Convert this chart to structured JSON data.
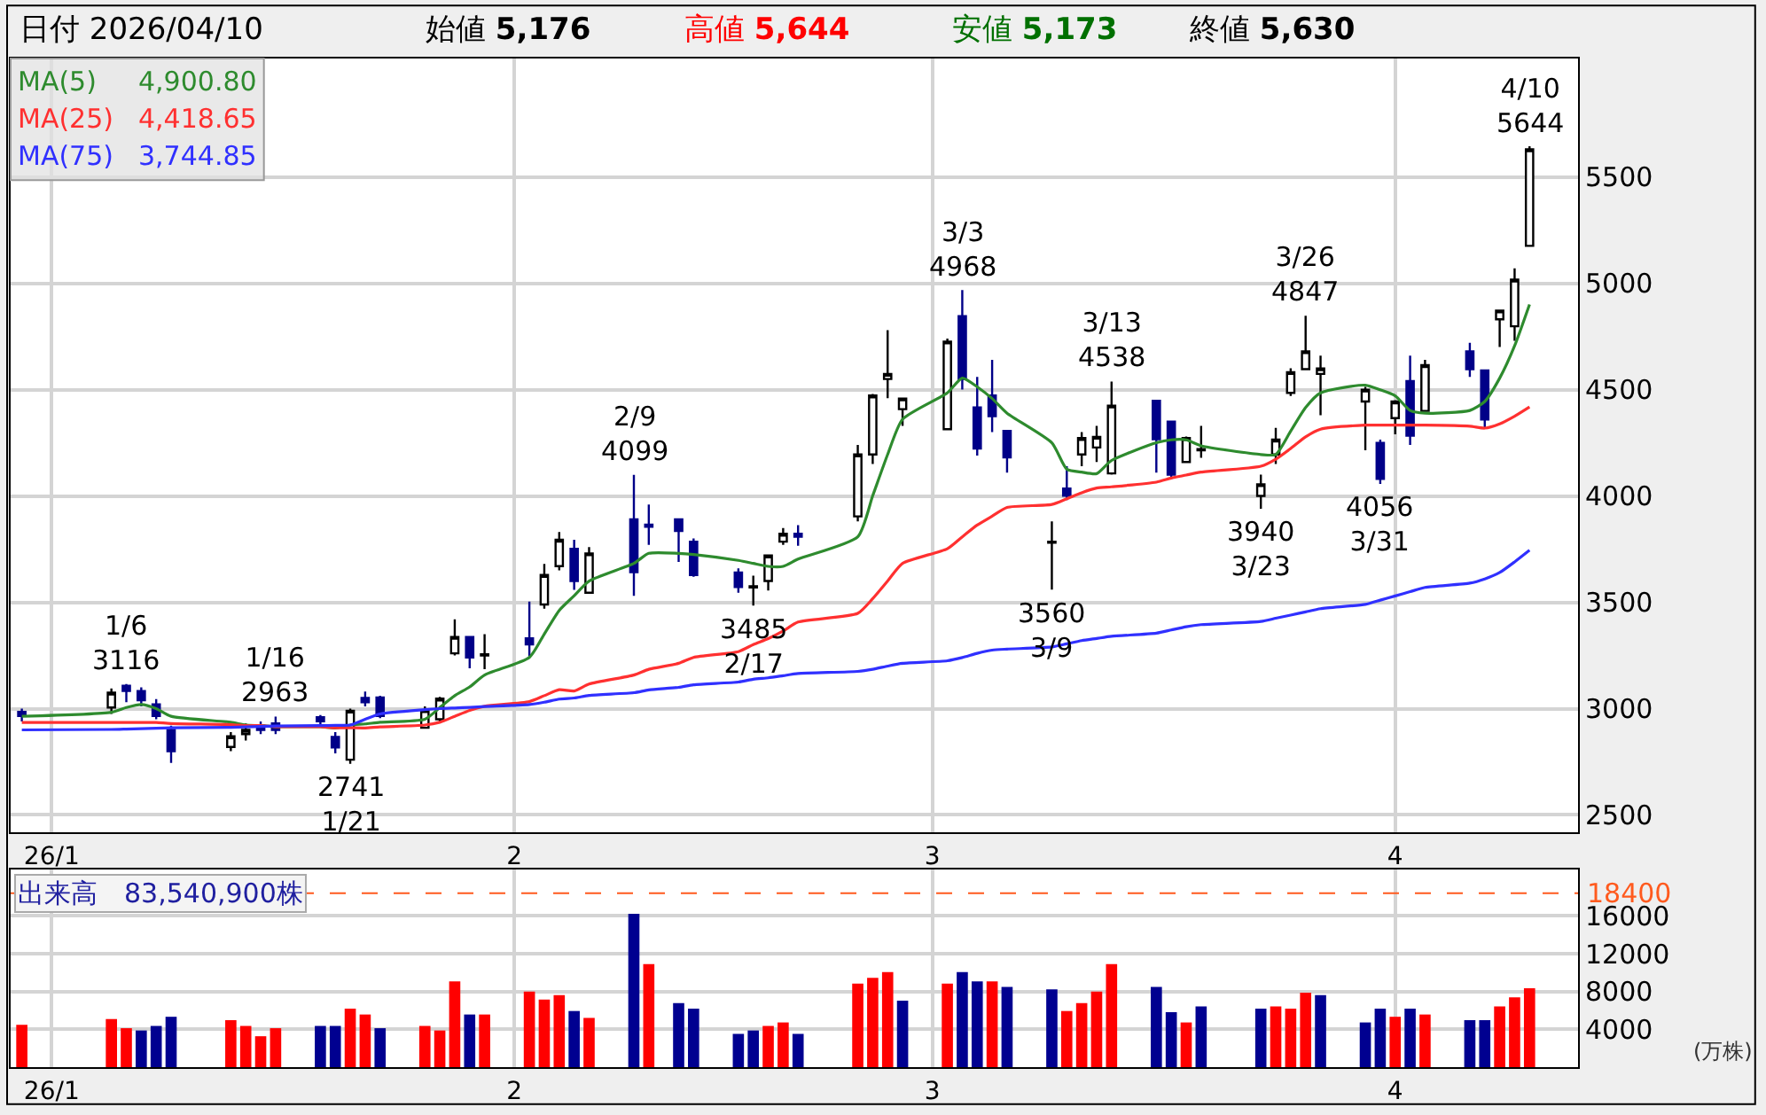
{
  "chart_data": [
    {
      "type": "candlestick",
      "title": "日付 2026/04/10",
      "annotations": [
        "始値 5,176",
        "高値 5,644",
        "安値 5,173",
        "終値 5,630",
        {
          "text": "1/6\n3116",
          "x": "2026-01-06",
          "y": 3116
        },
        {
          "text": "1/16\n2963",
          "x": "2026-01-16",
          "y": 2963
        },
        {
          "text": "2741\n1/21",
          "x": "2026-01-21",
          "y": 2741
        },
        {
          "text": "2/9\n4099",
          "x": "2026-02-09",
          "y": 4099
        },
        {
          "text": "3485\n2/17",
          "x": "2026-02-17",
          "y": 3485
        },
        {
          "text": "3/3\n4968",
          "x": "2026-03-03",
          "y": 4968
        },
        {
          "text": "3560\n3/9",
          "x": "2026-03-09",
          "y": 3560
        },
        {
          "text": "3/13\n4538",
          "x": "2026-03-13",
          "y": 4538
        },
        {
          "text": "3940\n3/23",
          "x": "2026-03-23",
          "y": 3940
        },
        {
          "text": "3/26\n4847",
          "x": "2026-03-26",
          "y": 4847
        },
        {
          "text": "4056\n3/31",
          "x": "2026-03-31",
          "y": 4056
        },
        {
          "text": "4/10\n5644",
          "x": "2026-04-10",
          "y": 5644
        }
      ],
      "x": [
        "2025-12-30",
        "2026-01-05",
        "2026-01-06",
        "2026-01-07",
        "2026-01-08",
        "2026-01-09",
        "2026-01-13",
        "2026-01-14",
        "2026-01-15",
        "2026-01-16",
        "2026-01-19",
        "2026-01-20",
        "2026-01-21",
        "2026-01-22",
        "2026-01-23",
        "2026-01-26",
        "2026-01-27",
        "2026-01-28",
        "2026-01-29",
        "2026-01-30",
        "2026-02-02",
        "2026-02-03",
        "2026-02-04",
        "2026-02-05",
        "2026-02-06",
        "2026-02-09",
        "2026-02-10",
        "2026-02-12",
        "2026-02-13",
        "2026-02-16",
        "2026-02-17",
        "2026-02-18",
        "2026-02-19",
        "2026-02-20",
        "2026-02-24",
        "2026-02-25",
        "2026-02-26",
        "2026-02-27",
        "2026-03-02",
        "2026-03-03",
        "2026-03-04",
        "2026-03-05",
        "2026-03-06",
        "2026-03-09",
        "2026-03-10",
        "2026-03-11",
        "2026-03-12",
        "2026-03-13",
        "2026-03-16",
        "2026-03-17",
        "2026-03-18",
        "2026-03-19",
        "2026-03-23",
        "2026-03-24",
        "2026-03-25",
        "2026-03-26",
        "2026-03-27",
        "2026-03-30",
        "2026-03-31",
        "2026-04-01",
        "2026-04-02",
        "2026-04-03",
        "2026-04-06",
        "2026-04-07",
        "2026-04-08",
        "2026-04-09",
        "2026-04-10"
      ],
      "ohlc": [
        [
          2985,
          3000,
          2940,
          2965
        ],
        [
          3005,
          3095,
          2975,
          3075
        ],
        [
          3108,
          3116,
          3030,
          3083
        ],
        [
          3083,
          3100,
          3010,
          3039
        ],
        [
          3020,
          3045,
          2950,
          2965
        ],
        [
          2900,
          2920,
          2745,
          2800
        ],
        [
          2820,
          2890,
          2800,
          2870
        ],
        [
          2880,
          2930,
          2850,
          2900
        ],
        [
          2920,
          2940,
          2880,
          2900
        ],
        [
          2930,
          2963,
          2880,
          2900
        ],
        [
          2960,
          2970,
          2910,
          2940
        ],
        [
          2867,
          2890,
          2790,
          2818
        ],
        [
          2760,
          3000,
          2741,
          2990
        ],
        [
          3050,
          3080,
          3010,
          3030
        ],
        [
          3052,
          3060,
          2955,
          2965
        ],
        [
          2910,
          3010,
          2905,
          2992
        ],
        [
          2950,
          3055,
          2935,
          3047
        ],
        [
          3260,
          3420,
          3250,
          3337
        ],
        [
          3337,
          3340,
          3190,
          3240
        ],
        [
          3250,
          3350,
          3185,
          3255
        ],
        [
          3330,
          3503,
          3245,
          3302
        ],
        [
          3490,
          3680,
          3470,
          3628
        ],
        [
          3670,
          3830,
          3650,
          3794
        ],
        [
          3752,
          3794,
          3559,
          3600
        ],
        [
          3545,
          3760,
          3540,
          3730
        ],
        [
          3890,
          4099,
          3530,
          3642
        ],
        [
          3865,
          3960,
          3770,
          3855
        ],
        [
          3890,
          3895,
          3690,
          3835
        ],
        [
          3785,
          3800,
          3620,
          3628
        ],
        [
          3640,
          3660,
          3545,
          3572
        ],
        [
          3570,
          3625,
          3485,
          3575
        ],
        [
          3600,
          3720,
          3555,
          3720
        ],
        [
          3785,
          3849,
          3770,
          3822
        ],
        [
          3822,
          3863,
          3766,
          3808
        ],
        [
          3904,
          4240,
          3880,
          4195
        ],
        [
          4195,
          4480,
          4150,
          4472
        ],
        [
          4550,
          4780,
          4460,
          4574
        ],
        [
          4408,
          4458,
          4330,
          4458
        ],
        [
          4314,
          4740,
          4310,
          4726
        ],
        [
          4845,
          4968,
          4500,
          4549
        ],
        [
          4416,
          4560,
          4190,
          4223
        ],
        [
          4472,
          4640,
          4300,
          4375
        ],
        [
          4306,
          4306,
          4110,
          4181
        ],
        [
          3780,
          3880,
          3560,
          3785
        ],
        [
          4035,
          4140,
          3980,
          4001
        ],
        [
          4195,
          4300,
          4140,
          4272
        ],
        [
          4228,
          4330,
          4160,
          4278
        ],
        [
          4106,
          4538,
          4100,
          4425
        ],
        [
          4447,
          4447,
          4110,
          4267
        ],
        [
          4350,
          4350,
          4080,
          4100
        ],
        [
          4160,
          4280,
          4160,
          4272
        ],
        [
          4215,
          4330,
          4180,
          4220
        ],
        [
          4000,
          4100,
          3940,
          4055
        ],
        [
          4195,
          4320,
          4150,
          4265
        ],
        [
          4485,
          4600,
          4470,
          4582
        ],
        [
          4596,
          4847,
          4596,
          4680
        ],
        [
          4574,
          4660,
          4380,
          4600
        ],
        [
          4444,
          4513,
          4215,
          4500
        ],
        [
          4250,
          4265,
          4056,
          4080
        ],
        [
          4366,
          4450,
          4290,
          4444
        ],
        [
          4540,
          4660,
          4240,
          4283
        ],
        [
          4400,
          4640,
          4400,
          4615
        ],
        [
          4680,
          4720,
          4560,
          4596
        ],
        [
          4590,
          4590,
          4320,
          4360
        ],
        [
          4831,
          4872,
          4700,
          4872
        ],
        [
          4798,
          5070,
          4730,
          5017
        ],
        [
          5176,
          5644,
          5173,
          5630
        ]
      ],
      "series": [
        {
          "name": "MA(5) 4,900.80",
          "type": "line",
          "color": "#2e8b2e",
          "values": [
            2964,
            2983,
            3005,
            3019,
            3000,
            2964,
            2936,
            2923,
            2920,
            2915,
            2915,
            2909,
            2923,
            2928,
            2936,
            2950,
            3005,
            3061,
            3102,
            3158,
            3241,
            3351,
            3462,
            3531,
            3600,
            3683,
            3730,
            3730,
            3725,
            3697,
            3683,
            3669,
            3669,
            3703,
            3808,
            4001,
            4195,
            4361,
            4485,
            4554,
            4513,
            4458,
            4389,
            4250,
            4126,
            4112,
            4105,
            4167,
            4250,
            4264,
            4264,
            4236,
            4195,
            4195,
            4305,
            4416,
            4485,
            4521,
            4499,
            4471,
            4402,
            4389,
            4402,
            4444,
            4554,
            4706,
            4900.8
          ]
        },
        {
          "name": "MA(25) 4,418.65",
          "type": "line",
          "color": "#ff3030",
          "values": [
            2935,
            2935,
            2935,
            2935,
            2935,
            2930,
            2925,
            2920,
            2920,
            2915,
            2915,
            2910,
            2910,
            2909,
            2914,
            2923,
            2936,
            2964,
            2992,
            3011,
            3033,
            3061,
            3089,
            3083,
            3116,
            3158,
            3185,
            3213,
            3241,
            3268,
            3301,
            3329,
            3365,
            3407,
            3448,
            3517,
            3600,
            3683,
            3752,
            3808,
            3863,
            3905,
            3946,
            3960,
            3987,
            4015,
            4037,
            4043,
            4065,
            4084,
            4098,
            4112,
            4140,
            4173,
            4223,
            4278,
            4314,
            4333,
            4333,
            4333,
            4333,
            4333,
            4328,
            4319,
            4339,
            4375,
            4418.65
          ]
        },
        {
          "name": "MA(75) 3,744.85",
          "type": "line",
          "color": "#3030ff",
          "values": [
            2900,
            2902,
            2904,
            2906,
            2908,
            2910,
            2912,
            2914,
            2916,
            2918,
            2920,
            2921,
            2923,
            2950,
            2975,
            2995,
            3000,
            3003,
            3006,
            3010,
            3019,
            3030,
            3045,
            3050,
            3062,
            3075,
            3088,
            3100,
            3112,
            3125,
            3138,
            3145,
            3155,
            3165,
            3175,
            3185,
            3200,
            3213,
            3225,
            3240,
            3260,
            3275,
            3280,
            3290,
            3305,
            3320,
            3330,
            3340,
            3355,
            3370,
            3385,
            3395,
            3410,
            3425,
            3440,
            3455,
            3470,
            3490,
            3510,
            3530,
            3550,
            3570,
            3590,
            3610,
            3640,
            3690,
            3744.85
          ]
        }
      ],
      "xlim": [
        "2025-12-29T06:00",
        "2026-04-13T06:00"
      ],
      "xticks": [
        {
          "value": "2026-01-01",
          "label": "26/1"
        },
        {
          "value": "2026-02-01",
          "label": "2"
        },
        {
          "value": "2026-03-01",
          "label": "3"
        },
        {
          "value": "2026-04-01",
          "label": "4"
        }
      ],
      "ylim": [
        2417,
        6057
      ],
      "yticks": [
        2500,
        3000,
        3500,
        4000,
        4500,
        5000,
        5500
      ],
      "grid": true,
      "legend": "top left"
    },
    {
      "type": "bar",
      "title": "出来高　83,540,900株",
      "ylabel": "(万株)",
      "x": [
        "2025-12-30",
        "2026-01-05",
        "2026-01-06",
        "2026-01-07",
        "2026-01-08",
        "2026-01-09",
        "2026-01-13",
        "2026-01-14",
        "2026-01-15",
        "2026-01-16",
        "2026-01-19",
        "2026-01-20",
        "2026-01-21",
        "2026-01-22",
        "2026-01-23",
        "2026-01-26",
        "2026-01-27",
        "2026-01-28",
        "2026-01-29",
        "2026-01-30",
        "2026-02-02",
        "2026-02-03",
        "2026-02-04",
        "2026-02-05",
        "2026-02-06",
        "2026-02-09",
        "2026-02-10",
        "2026-02-12",
        "2026-02-13",
        "2026-02-16",
        "2026-02-17",
        "2026-02-18",
        "2026-02-19",
        "2026-02-20",
        "2026-02-24",
        "2026-02-25",
        "2026-02-26",
        "2026-02-27",
        "2026-03-02",
        "2026-03-03",
        "2026-03-04",
        "2026-03-05",
        "2026-03-06",
        "2026-03-09",
        "2026-03-10",
        "2026-03-11",
        "2026-03-12",
        "2026-03-13",
        "2026-03-16",
        "2026-03-17",
        "2026-03-18",
        "2026-03-19",
        "2026-03-23",
        "2026-03-24",
        "2026-03-25",
        "2026-03-26",
        "2026-03-27",
        "2026-03-30",
        "2026-03-31",
        "2026-04-01",
        "2026-04-02",
        "2026-04-03",
        "2026-04-06",
        "2026-04-07",
        "2026-04-08",
        "2026-04-09",
        "2026-04-10"
      ],
      "values": [
        4480,
        5090,
        4120,
        3880,
        4360,
        5330,
        4970,
        4360,
        3270,
        4120,
        4360,
        4360,
        6180,
        5570,
        4120,
        4360,
        3880,
        9080,
        5570,
        5570,
        8000,
        7150,
        7630,
        5940,
        5210,
        16220,
        10900,
        6780,
        6180,
        3520,
        3880,
        4360,
        4730,
        3520,
        8840,
        9450,
        10050,
        7030,
        8840,
        10050,
        9080,
        9080,
        8480,
        8240,
        5940,
        6780,
        8000,
        10900,
        8480,
        5820,
        4730,
        6420,
        6180,
        6420,
        6180,
        7870,
        7630,
        4730,
        6180,
        5330,
        6180,
        5570,
        4970,
        4970,
        6420,
        7390,
        8354
      ],
      "colors": [
        "#ff0000",
        "#ff0000",
        "#ff0000",
        "#000090",
        "#000090",
        "#000090",
        "#ff0000",
        "#ff0000",
        "#ff0000",
        "#ff0000",
        "#000090",
        "#000090",
        "#ff0000",
        "#ff0000",
        "#000090",
        "#ff0000",
        "#ff0000",
        "#ff0000",
        "#000090",
        "#ff0000",
        "#ff0000",
        "#ff0000",
        "#ff0000",
        "#000090",
        "#ff0000",
        "#000090",
        "#ff0000",
        "#000090",
        "#000090",
        "#000090",
        "#000090",
        "#ff0000",
        "#ff0000",
        "#000090",
        "#ff0000",
        "#ff0000",
        "#ff0000",
        "#000090",
        "#ff0000",
        "#000090",
        "#000090",
        "#ff0000",
        "#000090",
        "#000090",
        "#ff0000",
        "#ff0000",
        "#ff0000",
        "#ff0000",
        "#000090",
        "#000090",
        "#ff0000",
        "#000090",
        "#000090",
        "#ff0000",
        "#ff0000",
        "#ff0000",
        "#000090",
        "#000090",
        "#000090",
        "#ff0000",
        "#000090",
        "#ff0000",
        "#000090",
        "#000090",
        "#ff0000",
        "#ff0000",
        "#ff0000"
      ],
      "xlim": [
        "2025-12-29T06:00",
        "2026-04-13T06:00"
      ],
      "xticks": [
        {
          "value": "2026-01-01",
          "label": "26/1"
        },
        {
          "value": "2026-02-01",
          "label": "2"
        },
        {
          "value": "2026-03-01",
          "label": "3"
        },
        {
          "value": "2026-04-01",
          "label": "4"
        }
      ],
      "ylim": [
        0,
        20900
      ],
      "yticks": [
        4000,
        8000,
        12000,
        16000
      ],
      "ref_lines": [
        {
          "axis": "y",
          "value": 18400,
          "label": "18400",
          "color": "#ff5a1e",
          "line_style": "dashed"
        }
      ],
      "grid": true
    }
  ]
}
